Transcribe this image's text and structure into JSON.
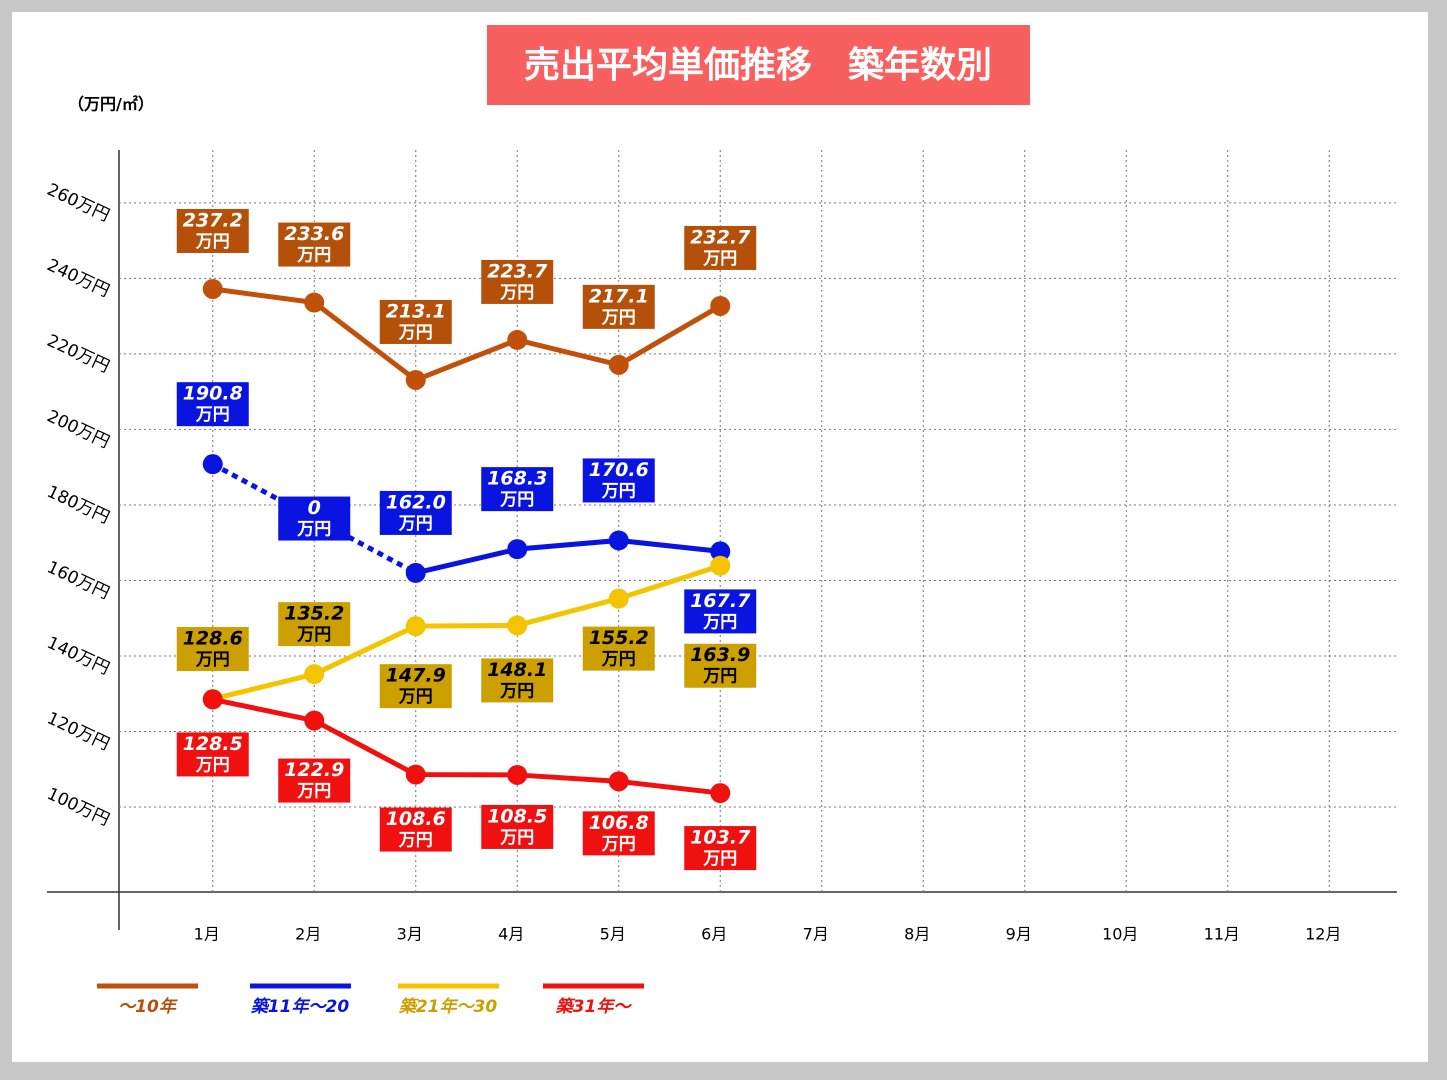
{
  "chart_data": {
    "type": "line",
    "title": "売出平均単価推移　築年数別",
    "y_unit_label": "（万円/㎡）",
    "value_unit": "万円",
    "categories": [
      "1月",
      "2月",
      "3月",
      "4月",
      "5月",
      "6月",
      "7月",
      "8月",
      "9月",
      "10月",
      "11月",
      "12月"
    ],
    "ylim": [
      77.5,
      274
    ],
    "yticks": [
      {
        "value": 100,
        "label": "100万円"
      },
      {
        "value": 120,
        "label": "120万円"
      },
      {
        "value": 140,
        "label": "140万円"
      },
      {
        "value": 160,
        "label": "160万円"
      },
      {
        "value": 180,
        "label": "180万円"
      },
      {
        "value": 200,
        "label": "200万円"
      },
      {
        "value": 220,
        "label": "220万円"
      },
      {
        "value": 240,
        "label": "240万円"
      },
      {
        "value": 260,
        "label": "260万円"
      }
    ],
    "grid": true,
    "legend": "bottom-left",
    "series": [
      {
        "name": "～10年",
        "color": "#c0500a",
        "label_color": "#b4500a",
        "label_text": "#ffffff",
        "values": [
          237.2,
          233.6,
          213.1,
          223.7,
          217.1,
          232.7,
          null,
          null,
          null,
          null,
          null,
          null
        ],
        "value_labels": [
          "237.2",
          "233.6",
          "213.1",
          "223.7",
          "217.1",
          "232.7",
          null,
          null,
          null,
          null,
          null,
          null
        ]
      },
      {
        "name": "築11年～20",
        "color": "#0a14e0",
        "label_color": "#0a14e0",
        "label_text": "#ffffff",
        "values": [
          190.8,
          0,
          162,
          168.3,
          170.6,
          167.7,
          null,
          null,
          null,
          null,
          null,
          null
        ],
        "value_labels": [
          "190.8",
          "0",
          "162.0",
          "168.3",
          "170.6",
          "167.7",
          null,
          null,
          null,
          null,
          null,
          null
        ]
      },
      {
        "name": "築21年～30",
        "color": "#f5c400",
        "label_color": "#cca000",
        "label_text": "#000000",
        "values": [
          128.6,
          135.2,
          147.9,
          148.1,
          155.2,
          163.9,
          null,
          null,
          null,
          null,
          null,
          null
        ],
        "value_labels": [
          "128.6",
          "135.2",
          "147.9",
          "148.1",
          "155.2",
          "163.9",
          null,
          null,
          null,
          null,
          null,
          null
        ]
      },
      {
        "name": "築31年～",
        "color": "#f01010",
        "label_color": "#f01010",
        "label_text": "#ffffff",
        "values": [
          128.5,
          122.9,
          108.6,
          108.5,
          106.8,
          103.7,
          null,
          null,
          null,
          null,
          null,
          null
        ],
        "value_labels": [
          "128.5",
          "122.9",
          "108.6",
          "108.5",
          "106.8",
          "103.7",
          null,
          null,
          null,
          null,
          null,
          null
        ]
      }
    ]
  }
}
